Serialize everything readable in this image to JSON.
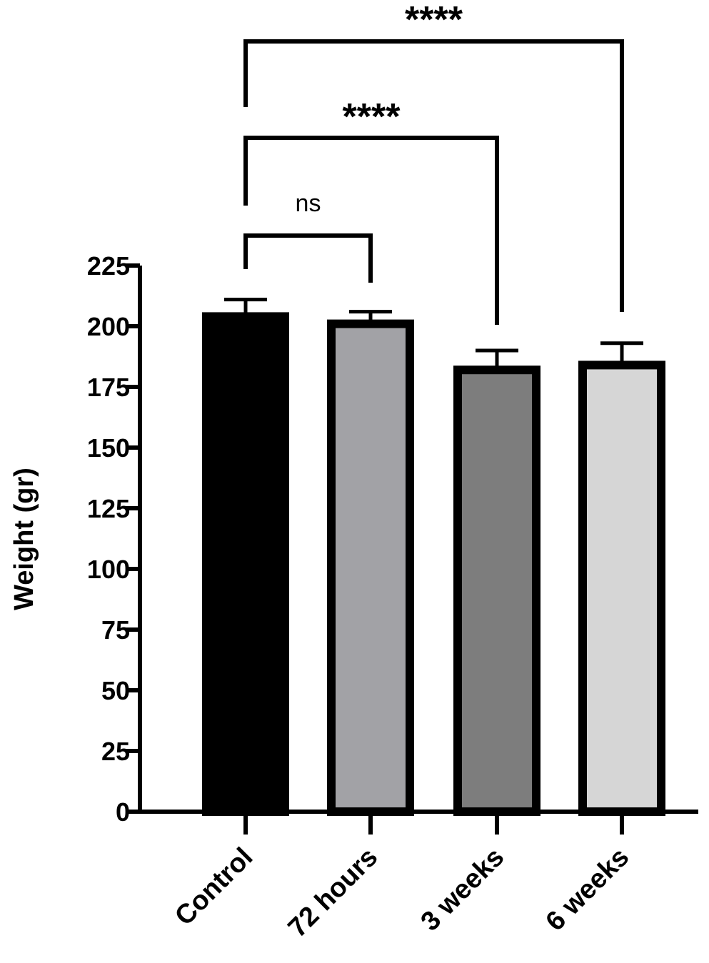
{
  "chart_data": {
    "type": "bar",
    "categories": [
      "Control",
      "72 hours",
      "3 weeks",
      "6 weeks"
    ],
    "values": [
      204,
      201,
      182,
      184
    ],
    "error": [
      7,
      5,
      8,
      9
    ],
    "bar_colors": [
      "#000000",
      "#a2a2a6",
      "#7d7d7d",
      "#d6d6d6"
    ],
    "ylabel": "Weight (gr)",
    "ylim": [
      0,
      225
    ],
    "yticks": [
      0,
      25,
      50,
      75,
      100,
      125,
      150,
      175,
      200,
      225
    ],
    "grid": false,
    "comparisons": [
      {
        "from": "Control",
        "to": "72 hours",
        "label": "ns"
      },
      {
        "from": "Control",
        "to": "3 weeks",
        "label": "****"
      },
      {
        "from": "Control",
        "to": "6 weeks",
        "label": "****"
      }
    ]
  }
}
